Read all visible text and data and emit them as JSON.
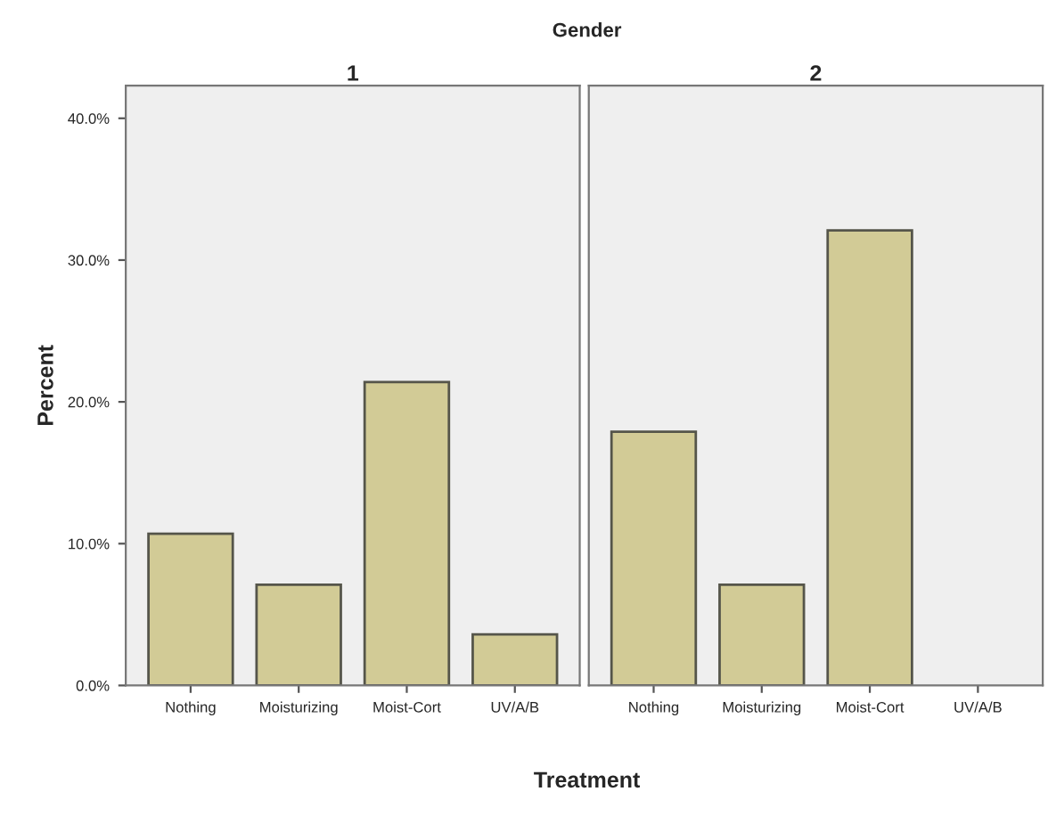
{
  "chart_data": [
    {
      "type": "bar",
      "title": "1",
      "annotations": [
        "Gender"
      ],
      "xlabel": "Treatment",
      "ylabel": "Percent",
      "categories": [
        "Nothing",
        "Moisturizing",
        "Moist-Cort",
        "UV/A/B"
      ],
      "values": [
        10.7,
        7.1,
        21.4,
        3.6
      ],
      "color": "#d2cb96",
      "ylim": [
        0,
        42.3
      ],
      "yticks": [
        {
          "value": 0,
          "label": "0.0%"
        },
        {
          "value": 10,
          "label": "10.0%"
        },
        {
          "value": 20,
          "label": "20.0%"
        },
        {
          "value": 30,
          "label": "30.0%"
        },
        {
          "value": 40,
          "label": "40.0%"
        }
      ],
      "grid": false,
      "legend": false
    },
    {
      "type": "bar",
      "title": "2",
      "categories": [
        "Nothing",
        "Moisturizing",
        "Moist-Cort",
        "UV/A/B"
      ],
      "values": [
        17.9,
        7.1,
        32.1,
        null
      ],
      "color": "#d2cb96",
      "ylim": [
        0,
        42.3
      ],
      "tick_labels": "x",
      "grid": false,
      "legend": false
    }
  ]
}
